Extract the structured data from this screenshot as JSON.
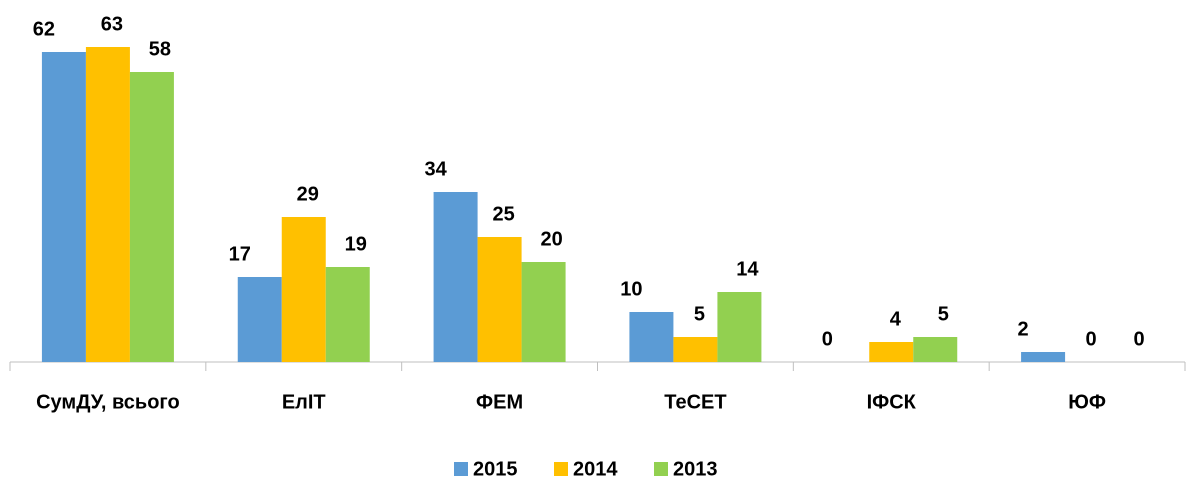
{
  "chart_data": {
    "type": "bar",
    "categories": [
      "СумДУ, всього",
      "ЕлІТ",
      "ФЕМ",
      "ТеСЕТ",
      "ІФСК",
      "ЮФ"
    ],
    "series": [
      {
        "name": "2015",
        "color": "#5b9bd5",
        "values": [
          62,
          17,
          34,
          10,
          0,
          2
        ]
      },
      {
        "name": "2014",
        "color": "#ffc000",
        "values": [
          63,
          29,
          25,
          5,
          4,
          0
        ]
      },
      {
        "name": "2013",
        "color": "#92d050",
        "values": [
          58,
          19,
          20,
          14,
          5,
          0
        ]
      }
    ],
    "legend": "bottom"
  }
}
